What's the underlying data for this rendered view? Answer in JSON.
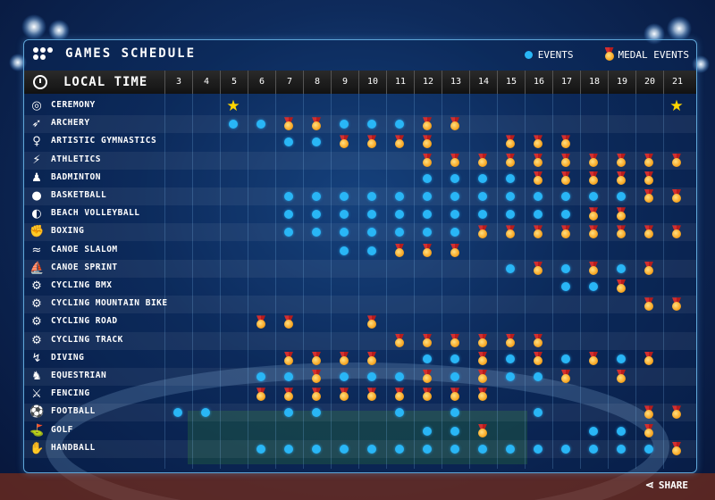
{
  "header": {
    "title": "GAMES SCHEDULE",
    "legend_events": "EVENTS",
    "legend_medal_events": "MEDAL EVENTS",
    "local_time": "LOCAL TIME",
    "share": "SHARE"
  },
  "colors": {
    "event_dot": "#29b6f6",
    "medal_gold": "#f9a825",
    "medal_ribbon": "#d32f2f",
    "star": "#ffd600",
    "panel_border": "#5fa6d8"
  },
  "days": [
    "3",
    "4",
    "5",
    "6",
    "7",
    "8",
    "9",
    "10",
    "11",
    "12",
    "13",
    "14",
    "15",
    "16",
    "17",
    "18",
    "19",
    "20",
    "21"
  ],
  "legend_codes": {
    "E": "events",
    "M": "medal-events",
    "S": "ceremony-star"
  },
  "sports": [
    {
      "name": "CEREMONY",
      "icon": "stadium-icon",
      "glyph": "◎",
      "s": "..S...............S"
    },
    {
      "name": "ARCHERY",
      "icon": "archer-icon",
      "glyph": "➶",
      "s": "..EEMMEEEMM........"
    },
    {
      "name": "ARTISTIC GYMNASTICS",
      "icon": "gymnast-icon",
      "glyph": "♀",
      "s": "....EEMMMM..MMM...."
    },
    {
      "name": "ATHLETICS",
      "icon": "runner-icon",
      "glyph": "⚡",
      "s": ".........MMMMMMMMMM"
    },
    {
      "name": "BADMINTON",
      "icon": "shuttlecock-icon",
      "glyph": "♟",
      "s": ".........EEEEMMMMM."
    },
    {
      "name": "BASKETBALL",
      "icon": "basketball-icon",
      "glyph": "●",
      "s": "....EEEEEEEEEEEEEMM"
    },
    {
      "name": "BEACH VOLLEYBALL",
      "icon": "volleyball-icon",
      "glyph": "◐",
      "s": "....EEEEEEEEEEEMM.."
    },
    {
      "name": "BOXING",
      "icon": "boxer-icon",
      "glyph": "✊",
      "s": "....EEEEEEEMMMMMMMM"
    },
    {
      "name": "CANOE SLALOM",
      "icon": "canoe-icon",
      "glyph": "≈",
      "s": "......EEMMM........"
    },
    {
      "name": "CANOE SPRINT",
      "icon": "kayak-icon",
      "glyph": "⛵",
      "s": "............EMEMEM."
    },
    {
      "name": "CYCLING BMX",
      "icon": "bmx-icon",
      "glyph": "⚙",
      "s": "..............EEM.."
    },
    {
      "name": "CYCLING MOUNTAIN BIKE",
      "icon": "mountain-bike-icon",
      "glyph": "⚙",
      "s": ".................MM"
    },
    {
      "name": "CYCLING ROAD",
      "icon": "road-bike-icon",
      "glyph": "⚙",
      "s": "...MM..M..........."
    },
    {
      "name": "CYCLING TRACK",
      "icon": "track-bike-icon",
      "glyph": "⚙",
      "s": "........MMMMMM....."
    },
    {
      "name": "DIVING",
      "icon": "diver-icon",
      "glyph": "↯",
      "s": "....MMMM.EEMEMEMEM."
    },
    {
      "name": "EQUESTRIAN",
      "icon": "horse-icon",
      "glyph": "♞",
      "s": "...EEMEEEMEMEEM.M.."
    },
    {
      "name": "FENCING",
      "icon": "fencer-icon",
      "glyph": "⚔",
      "s": "...MMMMMMMMM......."
    },
    {
      "name": "FOOTBALL",
      "icon": "football-icon",
      "glyph": "⚽",
      "s": "EE..EE..E.E..E...MM"
    },
    {
      "name": "GOLF",
      "icon": "golfer-icon",
      "glyph": "⛳",
      "s": ".........EEM...EEM."
    },
    {
      "name": "HANDBALL",
      "icon": "handball-icon",
      "glyph": "✋",
      "s": "...EEEEEEEEEEEEEEEM"
    }
  ]
}
